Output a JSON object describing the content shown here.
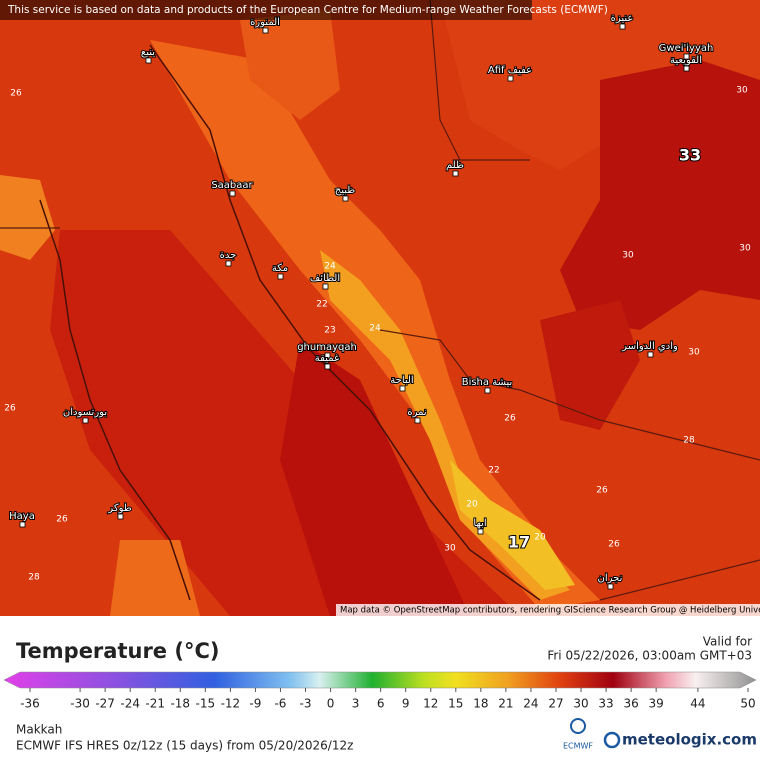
{
  "map": {
    "attribution": "This service is based on data and products of the European Centre for Medium-range Weather Forecasts (ECMWF)",
    "credit": "Map data © OpenStreetMap contributors, rendering GIScience Research Group @ Heidelberg University",
    "places": [
      "المنورة",
      "عنيزة",
      "ينبع",
      "Afif عفيف",
      "Gwei'iyyah",
      "القويعية",
      "ظلم",
      "Saabaar",
      "ظبيج",
      "جدة",
      "مكة",
      "الطائف",
      "ghumayqah",
      "غميقة",
      "الباحة",
      "Bisha بيشة",
      "نمرة",
      "وادي الدواسر",
      "بورتسودان",
      "Haya",
      "طوكر",
      "ابها",
      "نجران"
    ],
    "contours": [
      26,
      30,
      30,
      30,
      24,
      22,
      24,
      23,
      26,
      30,
      28,
      26,
      22,
      20,
      26,
      20,
      26,
      26,
      28,
      30
    ],
    "extremes": [
      33,
      17
    ]
  },
  "legend": {
    "title": "Temperature (°C)",
    "valid_label": "Valid for",
    "valid_time": "Fri 05/22/2026, 03:00am GMT+03",
    "ticks": [
      -36,
      -30,
      -27,
      -24,
      -21,
      -18,
      -15,
      -12,
      -9,
      -6,
      -3,
      0,
      3,
      6,
      9,
      12,
      15,
      18,
      21,
      24,
      27,
      30,
      33,
      36,
      39,
      44,
      50
    ]
  },
  "footer": {
    "location": "Makkah",
    "model": "ECMWF IFS HRES 0z/12z (15 days) from 05/20/2026/12z",
    "ecmwf": "ECMWF",
    "brand": "meteologix.com"
  }
}
